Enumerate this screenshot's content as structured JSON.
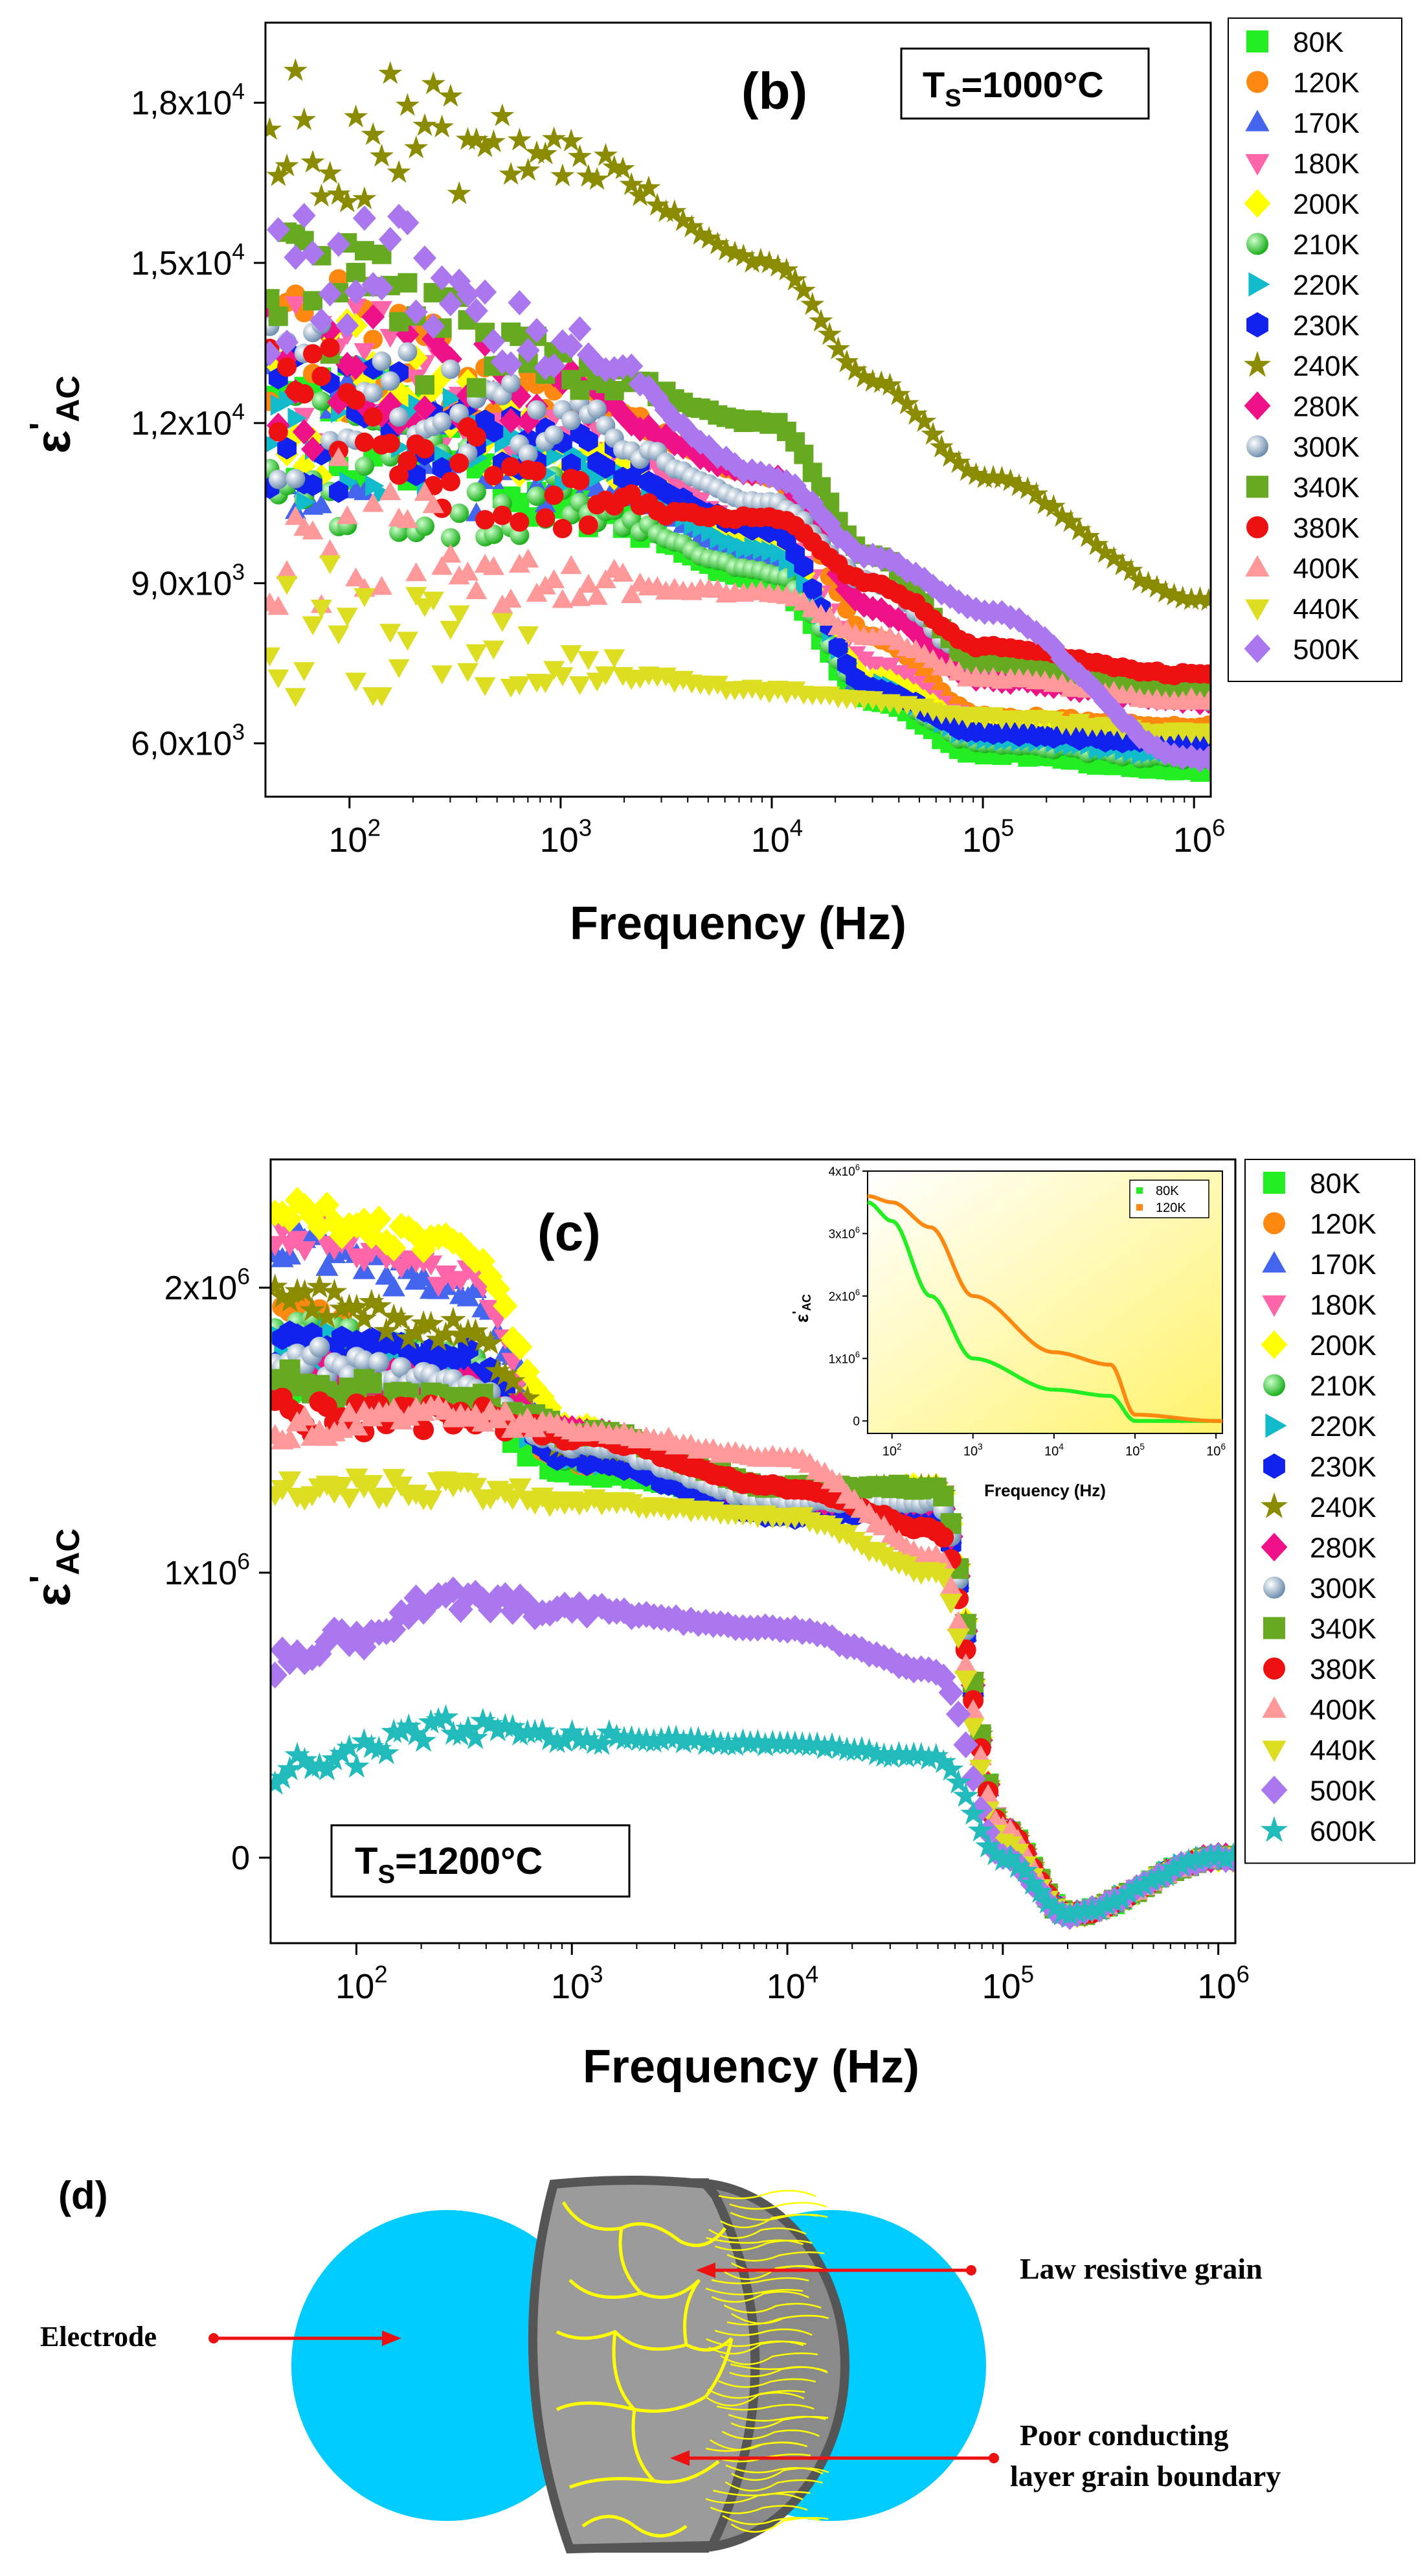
{
  "panels": {
    "b": {
      "chart_data": {
        "type": "scatter",
        "title": "(b)",
        "annotation": "T_S=1000°C",
        "xlabel": "Frequency (Hz)",
        "ylabel": "ε'AC",
        "xscale": "log",
        "xlim": [
          40,
          1200000
        ],
        "ylim": [
          5000,
          19500
        ],
        "x_ticks": [
          "10^2",
          "10^3",
          "10^4",
          "10^5",
          "10^6"
        ],
        "y_ticks": [
          "6,0x10^3",
          "9,0x10^3",
          "1,2x10^4",
          "1,5x10^4",
          "1,8x10^4"
        ],
        "y_tick_values": [
          6000,
          9000,
          12000,
          15000,
          18000
        ],
        "series": [
          {
            "name": "80K",
            "marker": "square",
            "color": "#22ee22",
            "x": [
              100,
              1000,
              10000,
              30000,
              100000,
              1000000
            ],
            "y": [
              12000,
              10500,
              9000,
              6800,
              5800,
              5500
            ]
          },
          {
            "name": "120K",
            "marker": "circle",
            "color": "#ff8811",
            "x": [
              100,
              1000,
              10000,
              30000,
              100000,
              1000000
            ],
            "y": [
              13500,
              12500,
              11000,
              8000,
              6500,
              6300
            ]
          },
          {
            "name": "170K",
            "marker": "triangle-up",
            "color": "#4466ee",
            "x": [
              100,
              1000,
              10000,
              30000,
              100000,
              1000000
            ],
            "y": [
              11500,
              11000,
              9500,
              7000,
              6200,
              5900
            ]
          },
          {
            "name": "180K",
            "marker": "triangle-down",
            "color": "#ff66aa",
            "x": [
              100,
              1000,
              10000,
              30000,
              100000,
              1000000
            ],
            "y": [
              13000,
              12000,
              10000,
              7500,
              6400,
              6100
            ]
          },
          {
            "name": "200K",
            "marker": "diamond",
            "color": "#ffff00",
            "x": [
              100,
              1000,
              10000,
              30000,
              100000,
              1000000
            ],
            "y": [
              12500,
              11500,
              9800,
              7200,
              6300,
              6000
            ]
          },
          {
            "name": "210K",
            "marker": "sphere",
            "color": "#22dd22",
            "x": [
              100,
              1000,
              10000,
              30000,
              100000,
              1000000
            ],
            "y": [
              11000,
              10500,
              9200,
              7000,
              6000,
              5700
            ]
          },
          {
            "name": "220K",
            "marker": "triangle-right",
            "color": "#11bbcc",
            "x": [
              100,
              1000,
              10000,
              30000,
              100000,
              1000000
            ],
            "y": [
              11800,
              11200,
              9600,
              7100,
              6100,
              5800
            ]
          },
          {
            "name": "230K",
            "marker": "hexagon",
            "color": "#1122ee",
            "x": [
              100,
              1000,
              10000,
              30000,
              100000,
              1000000
            ],
            "y": [
              12000,
              11500,
              10000,
              7000,
              6200,
              6000
            ]
          },
          {
            "name": "240K",
            "marker": "star",
            "color": "#8b8b00",
            "x": [
              100,
              1000,
              10000,
              30000,
              100000,
              1000000
            ],
            "y": [
              17500,
              17000,
              15000,
              12800,
              11000,
              8700
            ]
          },
          {
            "name": "280K",
            "marker": "diamond",
            "color": "#ee1188",
            "x": [
              100,
              1000,
              10000,
              30000,
              100000,
              1000000
            ],
            "y": [
              13000,
              12500,
              11000,
              8500,
              7200,
              6800
            ]
          },
          {
            "name": "300K",
            "marker": "sphere",
            "color": "#88aacc",
            "x": [
              100,
              1000,
              10000,
              30000,
              100000,
              1000000
            ],
            "y": [
              12500,
              12000,
              10500,
              9000,
              7500,
              6800
            ]
          },
          {
            "name": "340K",
            "marker": "square",
            "color": "#66aa22",
            "x": [
              100,
              1000,
              10000,
              30000,
              100000,
              1000000
            ],
            "y": [
              14000,
              13000,
              12000,
              9500,
              7500,
              7000
            ]
          },
          {
            "name": "380K",
            "marker": "circle",
            "color": "#ee1111",
            "x": [
              100,
              1000,
              10000,
              30000,
              100000,
              1000000
            ],
            "y": [
              12000,
              10500,
              10200,
              9000,
              7800,
              7300
            ]
          },
          {
            "name": "400K",
            "marker": "triangle-up",
            "color": "#ff9999",
            "x": [
              100,
              1000,
              10000,
              30000,
              100000,
              1000000
            ],
            "y": [
              10000,
              9000,
              8800,
              8000,
              7200,
              6800
            ]
          },
          {
            "name": "440K",
            "marker": "triangle-down",
            "color": "#dddd22",
            "x": [
              100,
              1000,
              10000,
              30000,
              100000,
              1000000
            ],
            "y": [
              8000,
              7500,
              7000,
              6800,
              6500,
              6200
            ]
          },
          {
            "name": "500K",
            "marker": "diamond",
            "color": "#aa77ee",
            "x": [
              100,
              1000,
              10000,
              30000,
              100000,
              1000000
            ],
            "y": [
              15000,
              13500,
              11000,
              9500,
              8500,
              5700
            ]
          }
        ],
        "legend": "right"
      }
    },
    "c": {
      "chart_data": {
        "type": "scatter",
        "title": "(c)",
        "annotation": "T_S=1200°C",
        "xlabel": "Frequency (Hz)",
        "ylabel": "ε'AC",
        "xscale": "log",
        "xlim": [
          40,
          1200000
        ],
        "ylim": [
          -300000,
          2450000
        ],
        "x_ticks": [
          "10^2",
          "10^3",
          "10^4",
          "10^5",
          "10^6"
        ],
        "y_ticks": [
          "0",
          "1x10^6",
          "2x10^6"
        ],
        "y_tick_values": [
          0,
          1000000,
          2000000
        ],
        "series": [
          {
            "name": "80K",
            "marker": "square",
            "color": "#22ee22",
            "x": [
              50,
              300,
              1000,
              10000,
              50000,
              100000,
              200000,
              1000000
            ],
            "y": [
              1650000,
              1600000,
              1350000,
              1250000,
              1250000,
              100000,
              -200000,
              0
            ]
          },
          {
            "name": "120K",
            "marker": "circle",
            "color": "#ff8811",
            "x": [
              50,
              300,
              1000,
              10000,
              50000,
              100000,
              200000,
              1000000
            ],
            "y": [
              1900000,
              1700000,
              1400000,
              1280000,
              1280000,
              100000,
              -200000,
              0
            ]
          },
          {
            "name": "170K",
            "marker": "triangle-up",
            "color": "#4466ee",
            "x": [
              50,
              300,
              1000,
              10000,
              50000,
              100000,
              200000,
              1000000
            ],
            "y": [
              2150000,
              2000000,
              1450000,
              1200000,
              1250000,
              100000,
              -200000,
              0
            ]
          },
          {
            "name": "180K",
            "marker": "triangle-down",
            "color": "#ff66aa",
            "x": [
              50,
              300,
              1000,
              10000,
              50000,
              100000,
              200000,
              1000000
            ],
            "y": [
              2200000,
              2050000,
              1400000,
              1250000,
              1300000,
              100000,
              -200000,
              0
            ]
          },
          {
            "name": "200K",
            "marker": "diamond",
            "color": "#ffff00",
            "x": [
              50,
              300,
              1000,
              10000,
              50000,
              100000,
              200000,
              1000000
            ],
            "y": [
              2250000,
              2150000,
              1500000,
              1250000,
              1300000,
              100000,
              -200000,
              0
            ]
          },
          {
            "name": "210K",
            "marker": "sphere",
            "color": "#22dd22",
            "x": [
              50,
              300,
              1000,
              10000,
              50000,
              100000,
              200000,
              1000000
            ],
            "y": [
              1850000,
              1750000,
              1400000,
              1250000,
              1250000,
              100000,
              -200000,
              0
            ]
          },
          {
            "name": "220K",
            "marker": "triangle-right",
            "color": "#11bbcc",
            "x": [
              50,
              300,
              1000,
              10000,
              50000,
              100000,
              200000,
              1000000
            ],
            "y": [
              1800000,
              1700000,
              1400000,
              1250000,
              1250000,
              100000,
              -200000,
              0
            ]
          },
          {
            "name": "230K",
            "marker": "hexagon",
            "color": "#1122ee",
            "x": [
              50,
              300,
              1000,
              10000,
              50000,
              100000,
              200000,
              1000000
            ],
            "y": [
              1800000,
              1750000,
              1400000,
              1200000,
              1220000,
              100000,
              -200000,
              0
            ]
          },
          {
            "name": "240K",
            "marker": "star",
            "color": "#8b8b00",
            "x": [
              50,
              300,
              1000,
              10000,
              50000,
              100000,
              200000,
              1000000
            ],
            "y": [
              1950000,
              1850000,
              1450000,
              1280000,
              1300000,
              100000,
              -200000,
              0
            ]
          },
          {
            "name": "280K",
            "marker": "diamond",
            "color": "#ee1188",
            "x": [
              50,
              300,
              1000,
              10000,
              50000,
              100000,
              200000,
              1000000
            ],
            "y": [
              1700000,
              1650000,
              1500000,
              1250000,
              1250000,
              100000,
              -200000,
              0
            ]
          },
          {
            "name": "300K",
            "marker": "sphere",
            "color": "#88aacc",
            "x": [
              50,
              300,
              1000,
              10000,
              50000,
              100000,
              200000,
              1000000
            ],
            "y": [
              1750000,
              1650000,
              1450000,
              1250000,
              1250000,
              100000,
              -200000,
              0
            ]
          },
          {
            "name": "340K",
            "marker": "square",
            "color": "#66aa22",
            "x": [
              50,
              300,
              1000,
              10000,
              50000,
              100000,
              200000,
              1000000
            ],
            "y": [
              1650000,
              1600000,
              1500000,
              1300000,
              1300000,
              100000,
              -200000,
              0
            ]
          },
          {
            "name": "380K",
            "marker": "circle",
            "color": "#ee1111",
            "x": [
              50,
              300,
              1000,
              10000,
              50000,
              100000,
              200000,
              1000000
            ],
            "y": [
              1550000,
              1550000,
              1480000,
              1300000,
              1150000,
              100000,
              -200000,
              0
            ]
          },
          {
            "name": "400K",
            "marker": "triangle-up",
            "color": "#ff9999",
            "x": [
              50,
              300,
              1000,
              10000,
              50000,
              100000,
              200000,
              1000000
            ],
            "y": [
              1500000,
              1550000,
              1500000,
              1400000,
              1050000,
              100000,
              -200000,
              0
            ]
          },
          {
            "name": "440K",
            "marker": "triangle-down",
            "color": "#dddd22",
            "x": [
              50,
              300,
              1000,
              10000,
              50000,
              100000,
              200000,
              1000000
            ],
            "y": [
              1300000,
              1300000,
              1250000,
              1200000,
              1000000,
              50000,
              -200000,
              0
            ]
          },
          {
            "name": "500K",
            "marker": "diamond",
            "color": "#aa77ee",
            "x": [
              50,
              300,
              1000,
              10000,
              50000,
              100000,
              200000,
              1000000
            ],
            "y": [
              700000,
              900000,
              870000,
              800000,
              650000,
              0,
              -200000,
              0
            ]
          },
          {
            "name": "600K",
            "marker": "star",
            "color": "#22bbbb",
            "x": [
              50,
              300,
              1000,
              10000,
              50000,
              100000,
              200000,
              1000000
            ],
            "y": [
              300000,
              450000,
              420000,
              400000,
              350000,
              0,
              -200000,
              0
            ]
          }
        ],
        "legend": "right"
      },
      "inset": {
        "chart_data": {
          "type": "line",
          "xlabel": "Frequency (Hz)",
          "ylabel": "ε'AC",
          "xscale": "log",
          "xlim": [
            50,
            1200000
          ],
          "ylim": [
            -200000,
            4000000
          ],
          "x_ticks": [
            "10^2",
            "10^3",
            "10^4",
            "10^5",
            "10^6"
          ],
          "y_ticks": [
            "0",
            "1x10^6",
            "2x10^6",
            "3x10^6",
            "4x10^6"
          ],
          "y_tick_values": [
            0,
            1000000,
            2000000,
            3000000,
            4000000
          ],
          "series": [
            {
              "name": "80K",
              "color": "#22ee22",
              "x": [
                50,
                100,
                300,
                1000,
                10000,
                50000,
                100000,
                1000000
              ],
              "y": [
                3500000,
                3200000,
                2000000,
                1000000,
                500000,
                400000,
                0,
                0
              ]
            },
            {
              "name": "120K",
              "color": "#ff8811",
              "x": [
                50,
                100,
                300,
                1000,
                10000,
                50000,
                100000,
                1000000
              ],
              "y": [
                3600000,
                3500000,
                3100000,
                2000000,
                1100000,
                900000,
                100000,
                0
              ]
            }
          ],
          "legend": "top-right"
        }
      }
    },
    "d": {
      "title": "(d)",
      "labels": {
        "electrode": "Electrode",
        "grain": "Law resistive grain",
        "boundary_line1": "Poor conducting",
        "boundary_line2": "layer grain boundary"
      },
      "colors": {
        "electrode": "#00ccff",
        "grain": "#999999",
        "boundary": "#ffff00",
        "arrow": "#ee1111"
      }
    }
  }
}
